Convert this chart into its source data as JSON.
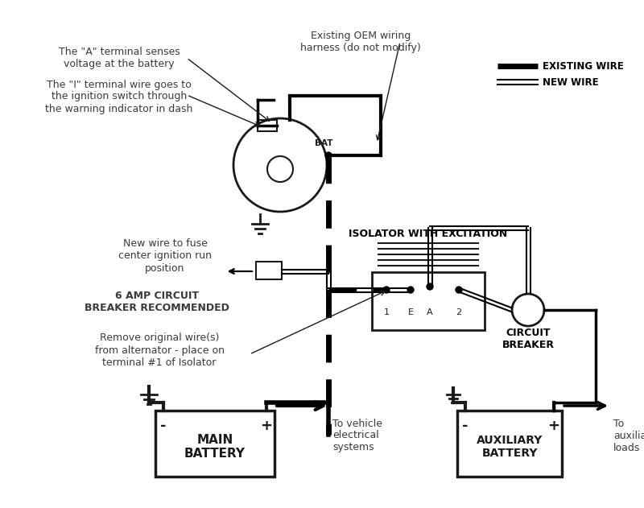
{
  "bg_color": "#ffffff",
  "text_color": "#3a3a3a",
  "line_color": "#1a1a1a",
  "figsize": [
    8.0,
    6.31
  ],
  "dpi": 100,
  "annotations": {
    "a_terminal": "The \"A\" terminal senses\nvoltage at the battery",
    "i_terminal": "The \"I\" terminal wire goes to\nthe ignition switch through\nthe warning indicator in dash",
    "oem_harness": "Existing OEM wiring\nharness (do not modify)",
    "new_wire_fuse": "New wire to fuse\ncenter ignition run\nposition",
    "circuit_breaker_rec": "6 AMP CIRCUIT\nBREAKER RECOMMENDED",
    "remove_wire": "Remove original wire(s)\nfrom alternator - place on\nterminal #1 of Isolator",
    "isolator_label": "ISOLATOR WITH EXCITATION",
    "circuit_breaker_label": "CIRCUIT\nBREAKER",
    "main_battery_label": "MAIN\nBATTERY",
    "aux_battery_label": "AUXILIARY\nBATTERY",
    "to_vehicle": "To vehicle\nelectrical\nsystems",
    "to_aux": "To\nauxiliary\nloads",
    "bat_label": "BAT",
    "terminal_1": "1",
    "terminal_e": "E",
    "terminal_a": "A",
    "terminal_2": "2",
    "legend_existing": "EXISTING WIRE",
    "legend_new": "NEW WIRE",
    "minus_sign": "-",
    "plus_sign": "+"
  }
}
